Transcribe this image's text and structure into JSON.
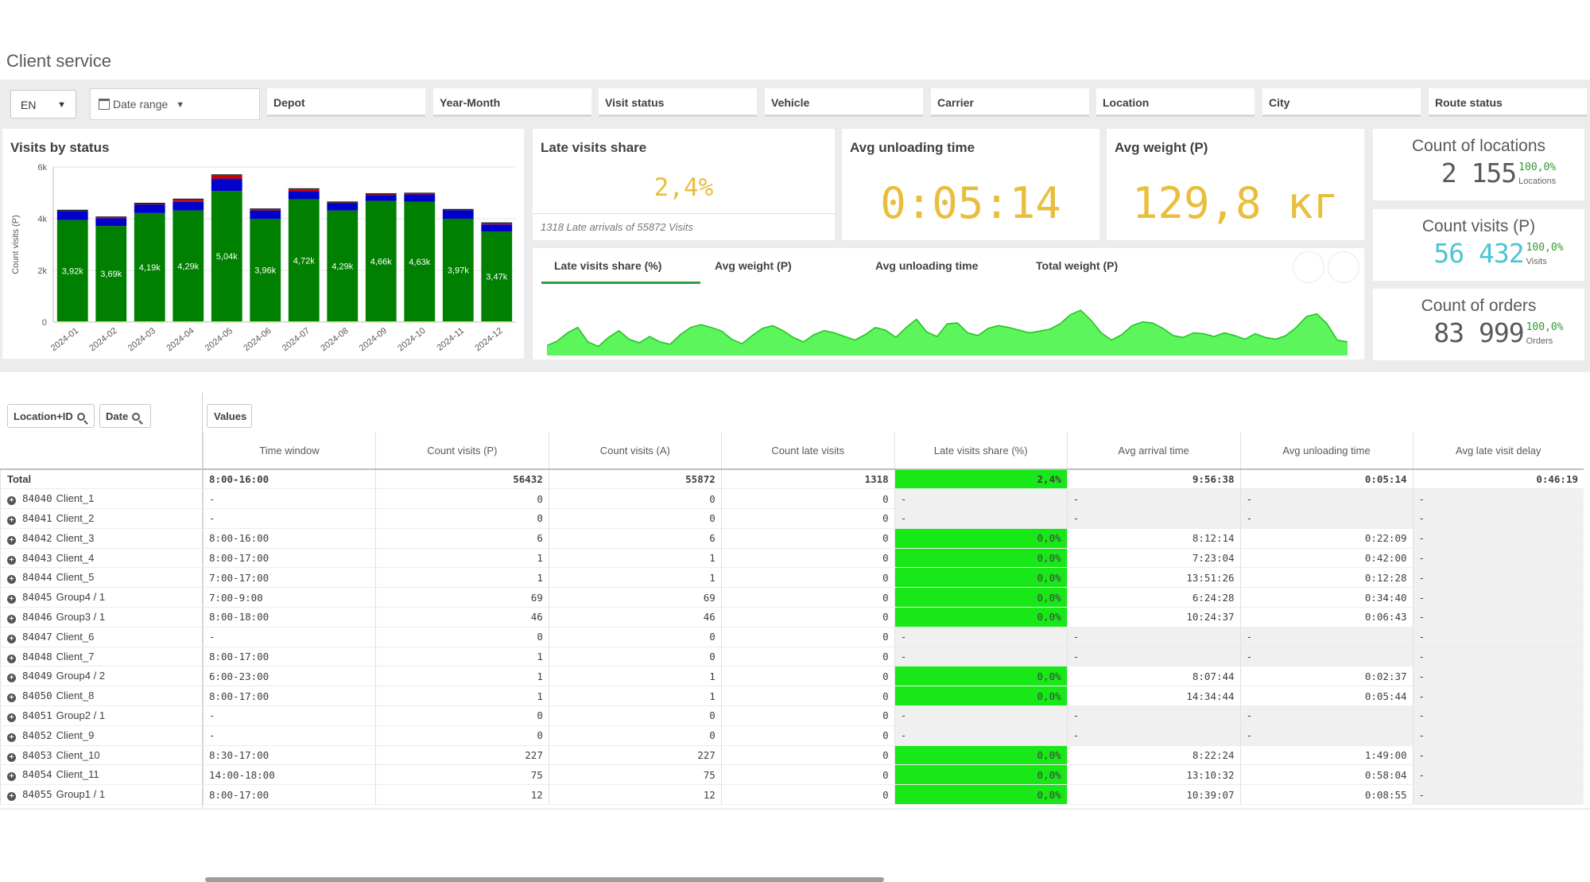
{
  "page": {
    "title": "Client service"
  },
  "filters": {
    "language": "EN",
    "date_range": "Date range",
    "boxes": [
      "Depot",
      "Year-Month",
      "Visit status",
      "Vehicle",
      "Carrier",
      "Location",
      "City",
      "Route status"
    ]
  },
  "visits_chart": {
    "title": "Visits by status"
  },
  "chart_data": {
    "type": "bar",
    "title": "Visits by status",
    "xlabel": "",
    "ylabel": "Count visits (P)",
    "ylim": [
      0,
      6000
    ],
    "y_ticks": [
      "0",
      "2k",
      "4k",
      "6k"
    ],
    "categories": [
      "2024-01",
      "2024-02",
      "2024-03",
      "2024-04",
      "2024-05",
      "2024-06",
      "2024-07",
      "2024-08",
      "2024-09",
      "2024-10",
      "2024-11",
      "2024-12"
    ],
    "series": [
      {
        "color": "#008000",
        "values": [
          3920,
          3690,
          4190,
          4290,
          5040,
          3960,
          4720,
          4290,
          4660,
          4630,
          3970,
          3470
        ],
        "labels": [
          "3,92k",
          "3,69k",
          "4,19k",
          "4,29k",
          "5,04k",
          "3,96k",
          "4,72k",
          "4,29k",
          "4,66k",
          "4,63k",
          "3,97k",
          "3,47k"
        ]
      },
      {
        "color": "#0000cc",
        "values": [
          350,
          300,
          330,
          330,
          480,
          330,
          310,
          280,
          220,
          280,
          330,
          280
        ]
      },
      {
        "color": "#cc0000",
        "values": [
          0,
          20,
          20,
          80,
          120,
          30,
          70,
          20,
          30,
          20,
          0,
          30
        ]
      },
      {
        "color": "#f2f200",
        "values": [
          30,
          30,
          30,
          30,
          30,
          30,
          30,
          30,
          30,
          30,
          30,
          30
        ]
      }
    ]
  },
  "kpis": {
    "late_share": {
      "title": "Late visits share",
      "value": "2,4%",
      "sub": "1318 Late arrivals of 55872 Visits"
    },
    "unloading": {
      "title": "Avg unloading time",
      "value": "0:05:14"
    },
    "weight": {
      "title": "Avg weight (P)",
      "value": "129,8 кг"
    }
  },
  "counts": {
    "locations": {
      "title": "Count of locations",
      "value": "2 155",
      "pct": "100,0%",
      "unit": "Locations",
      "color": "#595959"
    },
    "visits": {
      "title": "Count visits (P)",
      "value": "56 432",
      "pct": "100,0%",
      "unit": "Visits",
      "color": "#4ec3d4"
    },
    "orders": {
      "title": "Count of orders",
      "value": "83 999",
      "pct": "100,0%",
      "unit": "Orders",
      "color": "#595959"
    }
  },
  "trend": {
    "tabs": [
      "Late visits share (%)",
      "Avg weight (P)",
      "Avg unloading time",
      "Total weight (P)"
    ],
    "active_tab": 0,
    "fill_color": "#5cf55c",
    "line_color": "#22c022"
  },
  "table": {
    "dim_chips": [
      "Location+ID",
      "Date"
    ],
    "values_chip": "Values",
    "columns": [
      "Time window",
      "Count visits (P)",
      "Count visits (A)",
      "Count late visits",
      "Late visits share (%)",
      "Avg arrival time",
      "Avg unloading time",
      "Avg late visit delay"
    ],
    "total": {
      "label": "Total",
      "cells": [
        "8:00-16:00",
        "56432",
        "55872",
        "1318",
        "2,4%",
        "9:56:38",
        "0:05:14",
        "0:46:19"
      ]
    },
    "rows": [
      {
        "id": "84040",
        "name": "Client_1",
        "cells": [
          "-",
          "0",
          "0",
          "0",
          "-",
          "-",
          "-",
          "-"
        ]
      },
      {
        "id": "84041",
        "name": "Client_2",
        "cells": [
          "-",
          "0",
          "0",
          "0",
          "-",
          "-",
          "-",
          "-"
        ]
      },
      {
        "id": "84042",
        "name": "Client_3",
        "cells": [
          "8:00-16:00",
          "6",
          "6",
          "0",
          "0,0%",
          "8:12:14",
          "0:22:09",
          "-"
        ]
      },
      {
        "id": "84043",
        "name": "Client_4",
        "cells": [
          "8:00-17:00",
          "1",
          "1",
          "0",
          "0,0%",
          "7:23:04",
          "0:42:00",
          "-"
        ]
      },
      {
        "id": "84044",
        "name": "Client_5",
        "cells": [
          "7:00-17:00",
          "1",
          "1",
          "0",
          "0,0%",
          "13:51:26",
          "0:12:28",
          "-"
        ]
      },
      {
        "id": "84045",
        "name": "Group4 / 1",
        "cells": [
          "7:00-9:00",
          "69",
          "69",
          "0",
          "0,0%",
          "6:24:28",
          "0:34:40",
          "-"
        ]
      },
      {
        "id": "84046",
        "name": "Group3 / 1",
        "cells": [
          "8:00-18:00",
          "46",
          "46",
          "0",
          "0,0%",
          "10:24:37",
          "0:06:43",
          "-"
        ]
      },
      {
        "id": "84047",
        "name": "Client_6",
        "cells": [
          "-",
          "0",
          "0",
          "0",
          "-",
          "-",
          "-",
          "-"
        ]
      },
      {
        "id": "84048",
        "name": "Client_7",
        "cells": [
          "8:00-17:00",
          "1",
          "0",
          "0",
          "-",
          "-",
          "-",
          "-"
        ]
      },
      {
        "id": "84049",
        "name": "Group4 / 2",
        "cells": [
          "6:00-23:00",
          "1",
          "1",
          "0",
          "0,0%",
          "8:07:44",
          "0:02:37",
          "-"
        ]
      },
      {
        "id": "84050",
        "name": "Client_8",
        "cells": [
          "8:00-17:00",
          "1",
          "1",
          "0",
          "0,0%",
          "14:34:44",
          "0:05:44",
          "-"
        ]
      },
      {
        "id": "84051",
        "name": "Group2 / 1",
        "cells": [
          "-",
          "0",
          "0",
          "0",
          "-",
          "-",
          "-",
          "-"
        ]
      },
      {
        "id": "84052",
        "name": "Client_9",
        "cells": [
          "-",
          "0",
          "0",
          "0",
          "-",
          "-",
          "-",
          "-"
        ]
      },
      {
        "id": "84053",
        "name": "Client_10",
        "cells": [
          "8:30-17:00",
          "227",
          "227",
          "0",
          "0,0%",
          "8:22:24",
          "1:49:00",
          "-"
        ]
      },
      {
        "id": "84054",
        "name": "Client_11",
        "cells": [
          "14:00-18:00",
          "75",
          "75",
          "0",
          "0,0%",
          "13:10:32",
          "0:58:04",
          "-"
        ]
      },
      {
        "id": "84055",
        "name": "Group1 / 1",
        "cells": [
          "8:00-17:00",
          "12",
          "12",
          "0",
          "0,0%",
          "10:39:07",
          "0:08:55",
          "-"
        ]
      }
    ]
  },
  "colors": {
    "accent_green": "#18e818",
    "kpi_yellow": "#e8be3c",
    "pct_green": "#2e9a2e"
  }
}
